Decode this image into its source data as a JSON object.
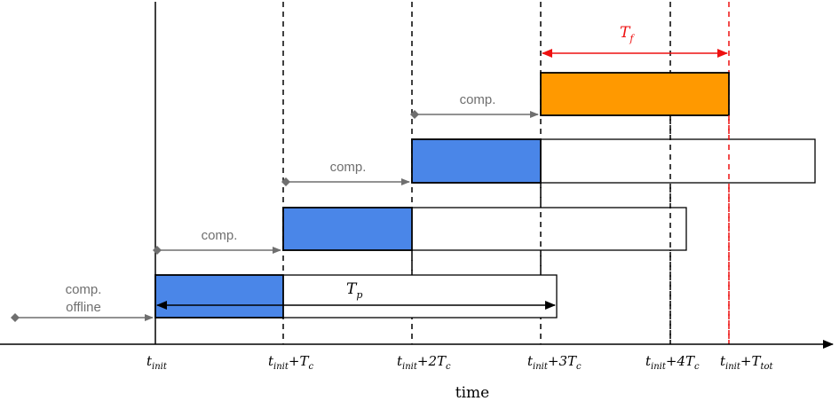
{
  "colors": {
    "blue": "#4a86e8",
    "orange": "#ff9900",
    "red": "#ee1111",
    "grey": "#6f6f6f",
    "black": "#000000"
  },
  "axis": {
    "title": "time"
  },
  "ticks": [
    {
      "base": "t",
      "sub": "init",
      "suffix": "",
      "suffix_sub": ""
    },
    {
      "base": "t",
      "sub": "init",
      "suffix": "+T",
      "suffix_sub": "c"
    },
    {
      "base": "t",
      "sub": "init",
      "suffix": "+2T",
      "suffix_sub": "c"
    },
    {
      "base": "t",
      "sub": "init",
      "suffix": "+3T",
      "suffix_sub": "c"
    },
    {
      "base": "t",
      "sub": "init",
      "suffix": "+4T",
      "suffix_sub": "c"
    },
    {
      "base": "t",
      "sub": "init",
      "suffix": "+T",
      "suffix_sub": "tot"
    }
  ],
  "labels": {
    "comp": "comp.",
    "offline_line1": "comp.",
    "offline_line2": "offline",
    "tp_base": "T",
    "tp_sub": "p",
    "tf_base": "T",
    "tf_sub": "f"
  }
}
